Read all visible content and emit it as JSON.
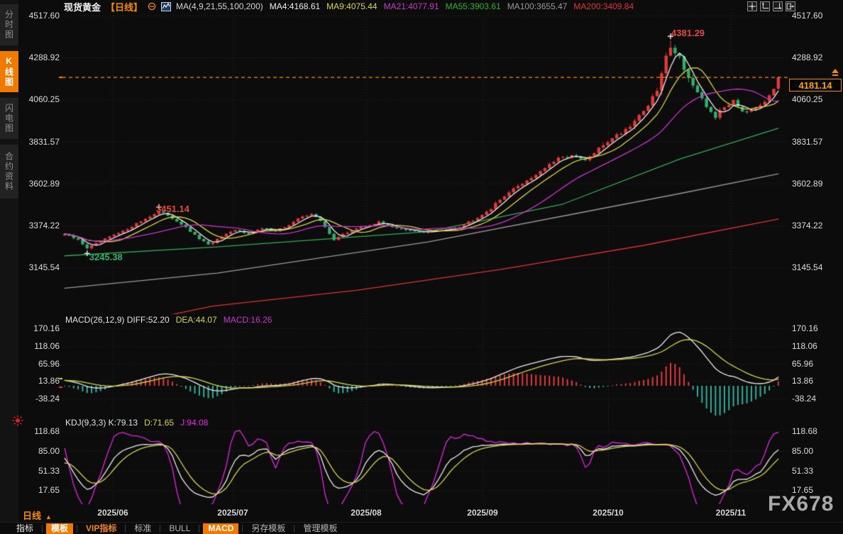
{
  "header": {
    "title": "现货黄金",
    "period": "【日线】",
    "ma_legend": [
      {
        "text": "MA(4,9,21,55,100,200)",
        "color": "#d4d4d4"
      },
      {
        "text": "MA4:4168.61",
        "color": "#ececec"
      },
      {
        "text": "MA9:4075.44",
        "color": "#d6d642"
      },
      {
        "text": "MA21:4077.91",
        "color": "#cc33cc"
      },
      {
        "text": "MA55:3903.61",
        "color": "#27b327"
      },
      {
        "text": "MA100:3655.47",
        "color": "#989898"
      },
      {
        "text": "MA200:3409.84",
        "color": "#e13232"
      }
    ],
    "window_icons": [
      "pan-crosshair-icon",
      "scale-left-axis-icon",
      "scale-right-axis-icon",
      "detach-window-icon"
    ]
  },
  "sidebar": {
    "items": [
      {
        "label": "分时图",
        "active": false
      },
      {
        "label": "K线图",
        "active": true
      },
      {
        "label": "闪电图",
        "active": false
      },
      {
        "label": "合约资料",
        "active": false
      }
    ]
  },
  "chart_data": [
    {
      "panel": "main",
      "type": "candlestick",
      "instrument": "现货黄金",
      "period": "日线",
      "y_ticks": [
        "4517.60",
        "4288.92",
        "4060.25",
        "3831.57",
        "3602.89",
        "3374.22",
        "3145.54"
      ],
      "x_ticks": [
        "2025/06",
        "2025/07",
        "2025/08",
        "2025/09",
        "2025/10",
        "2025/11"
      ],
      "candle_count": 160,
      "last_price": "4181.14",
      "up_color": "#e23b3b",
      "down_color": "#2fb170",
      "price_line_color": "#ff8a00",
      "close_anchors": [
        [
          0,
          3328
        ],
        [
          3,
          3295
        ],
        [
          5,
          3252
        ],
        [
          7,
          3275
        ],
        [
          10,
          3312
        ],
        [
          13,
          3342
        ],
        [
          16,
          3385
        ],
        [
          19,
          3425
        ],
        [
          21,
          3448
        ],
        [
          23,
          3430
        ],
        [
          26,
          3382
        ],
        [
          29,
          3320
        ],
        [
          32,
          3268
        ],
        [
          35,
          3312
        ],
        [
          38,
          3348
        ],
        [
          41,
          3332
        ],
        [
          44,
          3358
        ],
        [
          47,
          3348
        ],
        [
          50,
          3375
        ],
        [
          53,
          3425
        ],
        [
          55,
          3438
        ],
        [
          57,
          3398
        ],
        [
          60,
          3298
        ],
        [
          62,
          3325
        ],
        [
          65,
          3358
        ],
        [
          68,
          3378
        ],
        [
          70,
          3392
        ],
        [
          73,
          3368
        ],
        [
          76,
          3348
        ],
        [
          80,
          3338
        ],
        [
          84,
          3348
        ],
        [
          88,
          3368
        ],
        [
          92,
          3420
        ],
        [
          95,
          3468
        ],
        [
          98,
          3538
        ],
        [
          101,
          3590
        ],
        [
          104,
          3635
        ],
        [
          107,
          3688
        ],
        [
          110,
          3738
        ],
        [
          113,
          3756
        ],
        [
          116,
          3728
        ],
        [
          119,
          3790
        ],
        [
          122,
          3855
        ],
        [
          124,
          3880
        ],
        [
          126,
          3920
        ],
        [
          128,
          3975
        ],
        [
          130,
          4030
        ],
        [
          132,
          4110
        ],
        [
          134,
          4290
        ],
        [
          135,
          4356
        ],
        [
          137,
          4290
        ],
        [
          139,
          4180
        ],
        [
          141,
          4090
        ],
        [
          143,
          4020
        ],
        [
          145,
          3968
        ],
        [
          147,
          4018
        ],
        [
          149,
          4060
        ],
        [
          151,
          4000
        ],
        [
          153,
          4010
        ],
        [
          155,
          4035
        ],
        [
          157,
          4075
        ],
        [
          158,
          4120
        ],
        [
          159,
          4181.14
        ]
      ],
      "annotations": [
        {
          "type": "high",
          "index": 135,
          "value": 4381.29,
          "text": "4381.29",
          "color": "#e8453c"
        },
        {
          "type": "swing-high",
          "index": 21,
          "value": 3451.14,
          "text": "3451.14",
          "color": "#e8453c"
        },
        {
          "type": "swing-low",
          "index": 5,
          "value": 3245.38,
          "text": "3245.38",
          "color": "#2fb170"
        }
      ],
      "ma_computed": [
        {
          "name": "MA4",
          "period": 4,
          "color": "#ececec"
        },
        {
          "name": "MA9",
          "period": 9,
          "color": "#d6d642"
        },
        {
          "name": "MA21",
          "period": 21,
          "color": "#cc33cc"
        }
      ],
      "ma_anchor_lines": [
        {
          "name": "MA55",
          "color": "#2fae5a",
          "points": [
            [
              0,
              3209
            ],
            [
              34,
              3258
            ],
            [
              81,
              3341
            ],
            [
              111,
              3491
            ],
            [
              137,
              3736
            ],
            [
              159,
              3903.61
            ]
          ]
        },
        {
          "name": "MA100",
          "color": "#9a9a9a",
          "points": [
            [
              0,
              3033
            ],
            [
              34,
              3115
            ],
            [
              81,
              3285
            ],
            [
              113,
              3435
            ],
            [
              137,
              3548
            ],
            [
              159,
              3655.47
            ]
          ]
        },
        {
          "name": "MA200",
          "color": "#e13232",
          "points": [
            [
              20,
              2870
            ],
            [
              33,
              2935
            ],
            [
              65,
              3021
            ],
            [
              97,
              3134
            ],
            [
              129,
              3266
            ],
            [
              159,
              3409.84
            ]
          ]
        }
      ]
    },
    {
      "panel": "macd",
      "type": "macd",
      "label_parts": [
        {
          "text": "MACD(26,12,9) DIFF:52.20",
          "color": "#e2e2e2"
        },
        {
          "text": "DEA:44.07",
          "color": "#d6d642"
        },
        {
          "text": "MACD:16.26",
          "color": "#cc33cc"
        }
      ],
      "values": {
        "diff": 52.2,
        "dea": 44.07,
        "macd": 16.26
      },
      "params": {
        "slow": 26,
        "fast": 12,
        "signal": 9
      },
      "y_ticks": [
        "170.16",
        "118.06",
        "65.96",
        "13.86",
        "-38.24"
      ],
      "diff_color": "#ececec",
      "dea_color": "#d6d642",
      "hist_up_color": "#e23b3b",
      "hist_down_color": "#2fb1a0"
    },
    {
      "panel": "kdj",
      "type": "kdj",
      "label_parts": [
        {
          "text": "KDJ(9,3,3) K:79.13",
          "color": "#e2e2e2"
        },
        {
          "text": "D:71.65",
          "color": "#d6d642"
        },
        {
          "text": "J:94.08",
          "color": "#e326e3"
        }
      ],
      "values": {
        "k": 79.13,
        "d": 71.65,
        "j": 94.08
      },
      "y_ticks": [
        "118.68",
        "85.00",
        "51.33",
        "17.65"
      ],
      "k_color": "#ececec",
      "d_color": "#d6d642",
      "j_color": "#e326e3"
    }
  ],
  "footer": {
    "period_label": "日线",
    "dates": [
      "2025/06",
      "2025/07",
      "2025/08",
      "2025/09",
      "2025/10",
      "2025/11"
    ],
    "toolbar": [
      {
        "label": "指标",
        "style": "first"
      },
      {
        "label": "模板",
        "style": "active"
      },
      {
        "label": "VIP指标",
        "style": "vip"
      },
      {
        "label": "标准",
        "style": "plain"
      },
      {
        "label": "BULL",
        "style": "plain"
      },
      {
        "label": "MACD",
        "style": "active"
      },
      {
        "label": "另存模板",
        "style": "plain"
      },
      {
        "label": "管理模板",
        "style": "plain"
      }
    ]
  },
  "watermark": "FX678"
}
